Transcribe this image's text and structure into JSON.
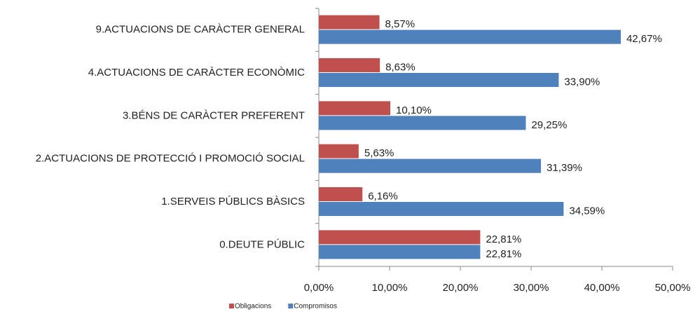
{
  "chart_data": {
    "type": "bar",
    "orientation": "horizontal",
    "categories": [
      "9.ACTUACIONS DE CARÀCTER GENERAL",
      "4.ACTUACIONS DE CARÀCTER ECONÒMIC",
      "3.BÉNS DE CARÀCTER PREFERENT",
      "2.ACTUACIONS DE PROTECCIÓ I PROMOCIÓ SOCIAL",
      "1.SERVEIS PÚBLICS BÀSICS",
      "0.DEUTE PÚBLIC"
    ],
    "series": [
      {
        "name": "Obligacions",
        "color": "#c0504d",
        "values": [
          8.57,
          8.63,
          10.1,
          5.63,
          6.16,
          22.81
        ],
        "value_labels": [
          "8,57%",
          "8,63%",
          "10,10%",
          "5,63%",
          "6,16%",
          "22,81%"
        ]
      },
      {
        "name": "Compromisos",
        "color": "#4f81bd",
        "values": [
          42.67,
          33.9,
          29.25,
          31.39,
          34.59,
          22.81
        ],
        "value_labels": [
          "42,67%",
          "33,90%",
          "29,25%",
          "31,39%",
          "34,59%",
          "22,81%"
        ]
      }
    ],
    "xlim": [
      0,
      50
    ],
    "xticks": [
      {
        "value": 0,
        "label": "0,00%"
      },
      {
        "value": 10,
        "label": "10,00%"
      },
      {
        "value": 20,
        "label": "20,00%"
      },
      {
        "value": 30,
        "label": "30,00%"
      },
      {
        "value": 40,
        "label": "40,00%"
      },
      {
        "value": 50,
        "label": "50,00%"
      }
    ],
    "legend": "bottom"
  }
}
